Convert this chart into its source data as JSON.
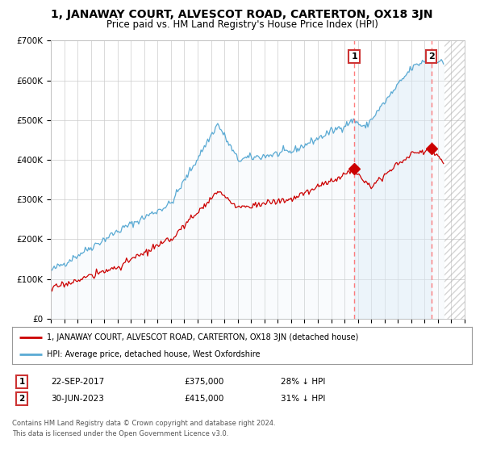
{
  "title": "1, JANAWAY COURT, ALVESCOT ROAD, CARTERTON, OX18 3JN",
  "subtitle": "Price paid vs. HM Land Registry's House Price Index (HPI)",
  "title_fontsize": 10,
  "subtitle_fontsize": 8.5,
  "ylim": [
    0,
    700000
  ],
  "yticks": [
    0,
    100000,
    200000,
    300000,
    400000,
    500000,
    600000,
    700000
  ],
  "ytick_labels": [
    "£0",
    "£100K",
    "£200K",
    "£300K",
    "£400K",
    "£500K",
    "£600K",
    "£700K"
  ],
  "x_start_year": 1995,
  "x_end_year": 2026,
  "hpi_color": "#5aaad4",
  "hpi_fill_color": "#daeaf5",
  "price_color": "#cc0000",
  "transaction1_date": 2017.73,
  "transaction1_price": 375000,
  "transaction1_label": "1",
  "transaction2_date": 2023.5,
  "transaction2_price": 415000,
  "transaction2_label": "2",
  "legend_line1": "1, JANAWAY COURT, ALVESCOT ROAD, CARTERTON, OX18 3JN (detached house)",
  "legend_line2": "HPI: Average price, detached house, West Oxfordshire",
  "footnote1": "Contains HM Land Registry data © Crown copyright and database right 2024.",
  "footnote2": "This data is licensed under the Open Government Licence v3.0.",
  "table_row1_num": "1",
  "table_row1_date": "22-SEP-2017",
  "table_row1_price": "£375,000",
  "table_row1_hpi": "28% ↓ HPI",
  "table_row2_num": "2",
  "table_row2_date": "30-JUN-2023",
  "table_row2_price": "£415,000",
  "table_row2_hpi": "31% ↓ HPI",
  "bg_color": "#ffffff",
  "grid_color": "#cccccc"
}
